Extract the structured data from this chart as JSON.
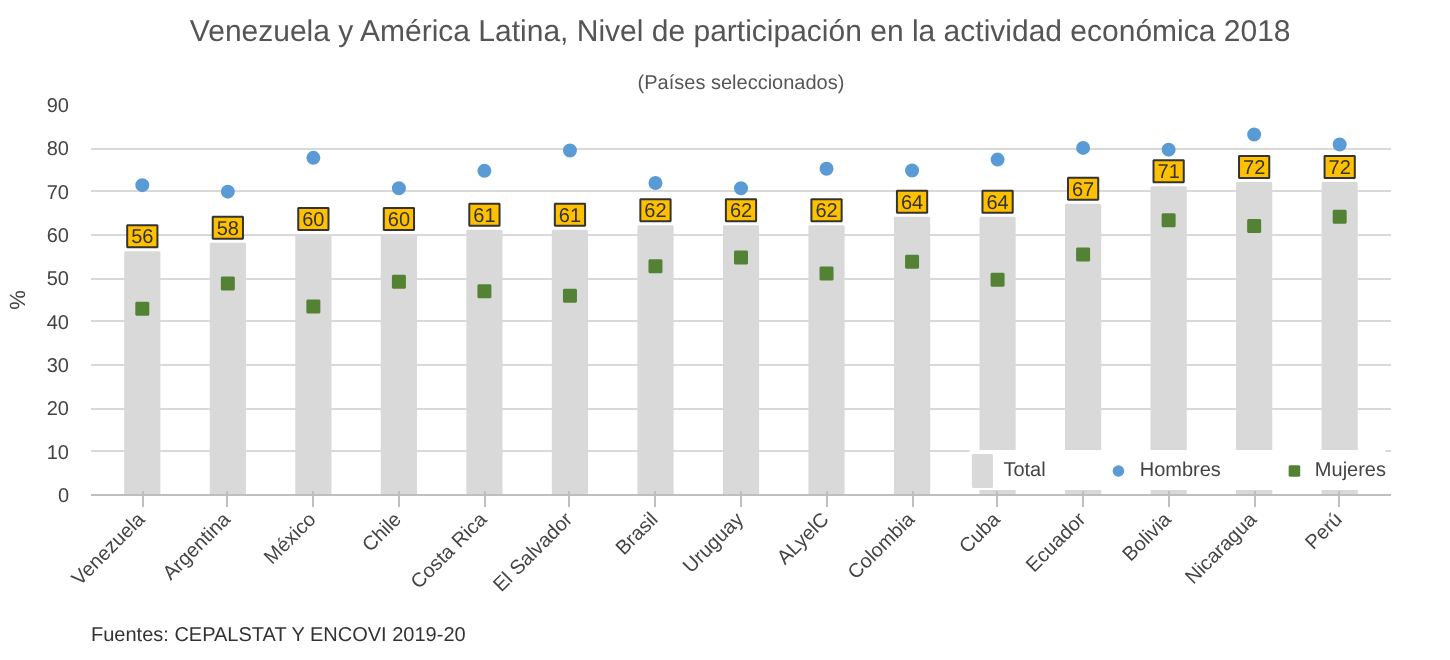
{
  "chart_data": {
    "type": "bar",
    "title": "Venezuela y América Latina, Nivel de participación en la actividad económica 2018",
    "subtitle": "(Países seleccionados)",
    "ylabel": "%",
    "categories": [
      "Venezuela",
      "Argentina",
      "México",
      "Chile",
      "Costa Rica",
      "El Salvador",
      "Brasil",
      "Uruguay",
      "ALyelC",
      "Colombia",
      "Cuba",
      "Ecuador",
      "Bolivia",
      "Nicaragua",
      "Perú"
    ],
    "series": [
      {
        "name": "Total",
        "color": "#d9d9d9",
        "values": [
          56,
          58,
          60,
          60,
          61,
          61,
          62,
          62,
          62,
          64,
          64,
          67,
          71,
          72,
          72
        ],
        "value_labels": [
          "56",
          "58",
          "60",
          "60",
          "61",
          "61",
          "62",
          "62",
          "62",
          "64",
          "64",
          "67",
          "71",
          "72",
          "72"
        ]
      },
      {
        "name": "Hombres",
        "type": "scatter",
        "marker": "circle",
        "color": "#5b9bd5",
        "values": [
          71.5,
          70,
          77.8,
          70.8,
          74.8,
          79.5,
          72,
          70.8,
          75.3,
          74.9,
          77.4,
          80.1,
          79.7,
          83.2,
          80.9
        ]
      },
      {
        "name": "Mujeres",
        "type": "scatter",
        "marker": "square",
        "color": "#548235",
        "values": [
          43,
          48.8,
          43.5,
          49.2,
          47,
          46,
          52.8,
          54.8,
          51.1,
          53.8,
          49.7,
          55.5,
          63.4,
          62.1,
          64.2
        ]
      }
    ],
    "ylim": [
      0,
      90
    ],
    "yticks": [
      0,
      10,
      20,
      30,
      40,
      50,
      60,
      70,
      80,
      90
    ],
    "grid": "y",
    "legend": "bottom right",
    "annotations": [
      "Fuentes: CEPALSTAT Y ENCOVI 2019-20"
    ]
  }
}
